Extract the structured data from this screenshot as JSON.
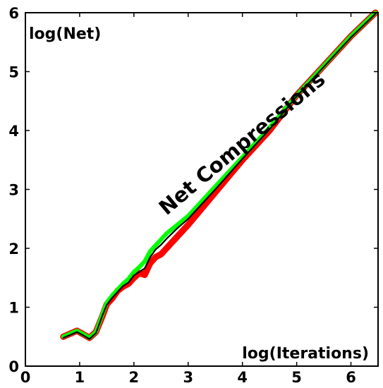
{
  "chart_data": {
    "type": "line",
    "title": "",
    "xlabel": "log(Iterations)",
    "ylabel": "log(Net)",
    "annotation": "Net Compressions",
    "xlim": [
      0,
      6.5
    ],
    "ylim": [
      0,
      6
    ],
    "xticks": [
      0,
      1,
      2,
      3,
      4,
      5,
      6
    ],
    "yticks": [
      0,
      1,
      2,
      3,
      4,
      5,
      6
    ],
    "grid": false,
    "legend": "none",
    "series": [
      {
        "color": "#ff0000",
        "x": [
          0.7,
          0.95,
          1.05,
          1.18,
          1.3,
          1.42,
          1.5,
          1.6,
          1.7,
          1.8,
          1.9,
          2.0,
          2.1,
          2.2,
          2.3,
          2.4,
          2.5,
          2.6,
          2.8,
          3.0,
          3.5,
          4.0,
          4.5,
          5.0,
          5.5,
          6.0,
          6.45
        ],
        "y": [
          0.5,
          0.6,
          0.55,
          0.48,
          0.58,
          0.85,
          1.05,
          1.15,
          1.28,
          1.35,
          1.4,
          1.5,
          1.58,
          1.55,
          1.75,
          1.85,
          1.9,
          2.0,
          2.2,
          2.4,
          2.95,
          3.5,
          4.0,
          4.6,
          5.1,
          5.6,
          6.0
        ]
      },
      {
        "color": "#00ff00",
        "x": [
          0.7,
          0.95,
          1.05,
          1.18,
          1.3,
          1.42,
          1.5,
          1.6,
          1.7,
          1.8,
          1.9,
          2.0,
          2.1,
          2.2,
          2.3,
          2.4,
          2.5,
          2.6,
          2.8,
          3.0,
          3.5,
          4.0,
          4.5,
          5.0,
          5.5,
          6.0,
          6.45
        ],
        "y": [
          0.5,
          0.6,
          0.55,
          0.48,
          0.58,
          0.88,
          1.08,
          1.2,
          1.3,
          1.4,
          1.48,
          1.6,
          1.68,
          1.78,
          1.95,
          2.05,
          2.15,
          2.25,
          2.4,
          2.55,
          3.05,
          3.55,
          4.05,
          4.6,
          5.1,
          5.6,
          6.0
        ]
      },
      {
        "color": "#000000",
        "x": [
          0.7,
          0.95,
          1.05,
          1.18,
          1.3,
          1.42,
          1.5,
          1.6,
          1.7,
          1.8,
          1.9,
          2.0,
          2.1,
          2.2,
          2.3,
          2.4,
          2.5,
          2.6,
          2.8,
          3.0,
          3.5,
          4.0,
          4.5,
          5.0,
          5.5,
          6.0,
          6.45
        ],
        "y": [
          0.48,
          0.58,
          0.53,
          0.46,
          0.56,
          0.86,
          1.04,
          1.16,
          1.26,
          1.36,
          1.42,
          1.54,
          1.6,
          1.66,
          1.85,
          1.98,
          2.06,
          2.16,
          2.34,
          2.5,
          3.0,
          3.52,
          4.02,
          4.58,
          5.08,
          5.58,
          5.98
        ]
      }
    ]
  }
}
